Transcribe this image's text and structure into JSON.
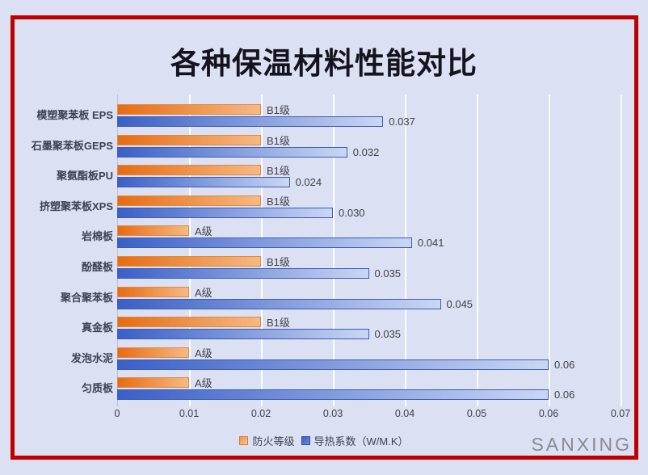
{
  "frame": {
    "border_color": "#c00000",
    "background": "#dbe0f2"
  },
  "title": "各种保温材料性能对比",
  "watermark": "SANXING",
  "legend": {
    "items": [
      {
        "label": "防火等级",
        "series": "fire_rating",
        "color": "#ed7d31"
      },
      {
        "label": "导热系数（W/M.K）",
        "series": "conductivity",
        "color": "#4472c4"
      }
    ]
  },
  "colors": {
    "fire_dark": "#e66c12",
    "fire_light": "#f6b983",
    "fire_border": "#e2873f",
    "cond_dark": "#3a5fc6",
    "cond_light": "#cad7f3",
    "cond_border": "#3b5cb8",
    "gridline": "#ffffff",
    "text_dark": "#3c4254",
    "label_gray": "#404049",
    "watermark_gray": "#8a8a93"
  },
  "chart_data": {
    "type": "bar",
    "orientation": "horizontal",
    "title": "各种保温材料性能对比",
    "xlabel": "",
    "ylabel": "",
    "grid": true,
    "legend_position": "bottom",
    "x_axis": {
      "min": 0,
      "max": 0.07,
      "tick_labels": [
        "0",
        "0.01",
        "0.02",
        "0.03",
        "0.04",
        "0.05",
        "0.06",
        "0.07"
      ]
    },
    "categories": [
      "模塑聚苯板 EPS",
      "石墨聚苯板GEPS",
      "聚氨酯板PU",
      "挤塑聚苯板XPS",
      "岩棉板",
      "酚醛板",
      "聚合聚苯板",
      "真金板",
      "发泡水泥",
      "匀质板"
    ],
    "series": [
      {
        "name": "防火等级",
        "labels": [
          "B1级",
          "B1级",
          "B1级",
          "B1级",
          "A级",
          "B1级",
          "A级",
          "B1级",
          "A级",
          "A级"
        ],
        "plotted_values": [
          0.02,
          0.02,
          0.02,
          0.02,
          0.01,
          0.02,
          0.01,
          0.02,
          0.01,
          0.01
        ]
      },
      {
        "name": "导热系数（W/M.K）",
        "unit": "W/M.K",
        "labels": [
          "0.037",
          "0.032",
          "0.024",
          "0.030",
          "0.041",
          "0.035",
          "0.045",
          "0.035",
          "0.06",
          "0.06"
        ],
        "values": [
          0.037,
          0.032,
          0.024,
          0.03,
          0.041,
          0.035,
          0.045,
          0.035,
          0.06,
          0.06
        ]
      }
    ]
  }
}
